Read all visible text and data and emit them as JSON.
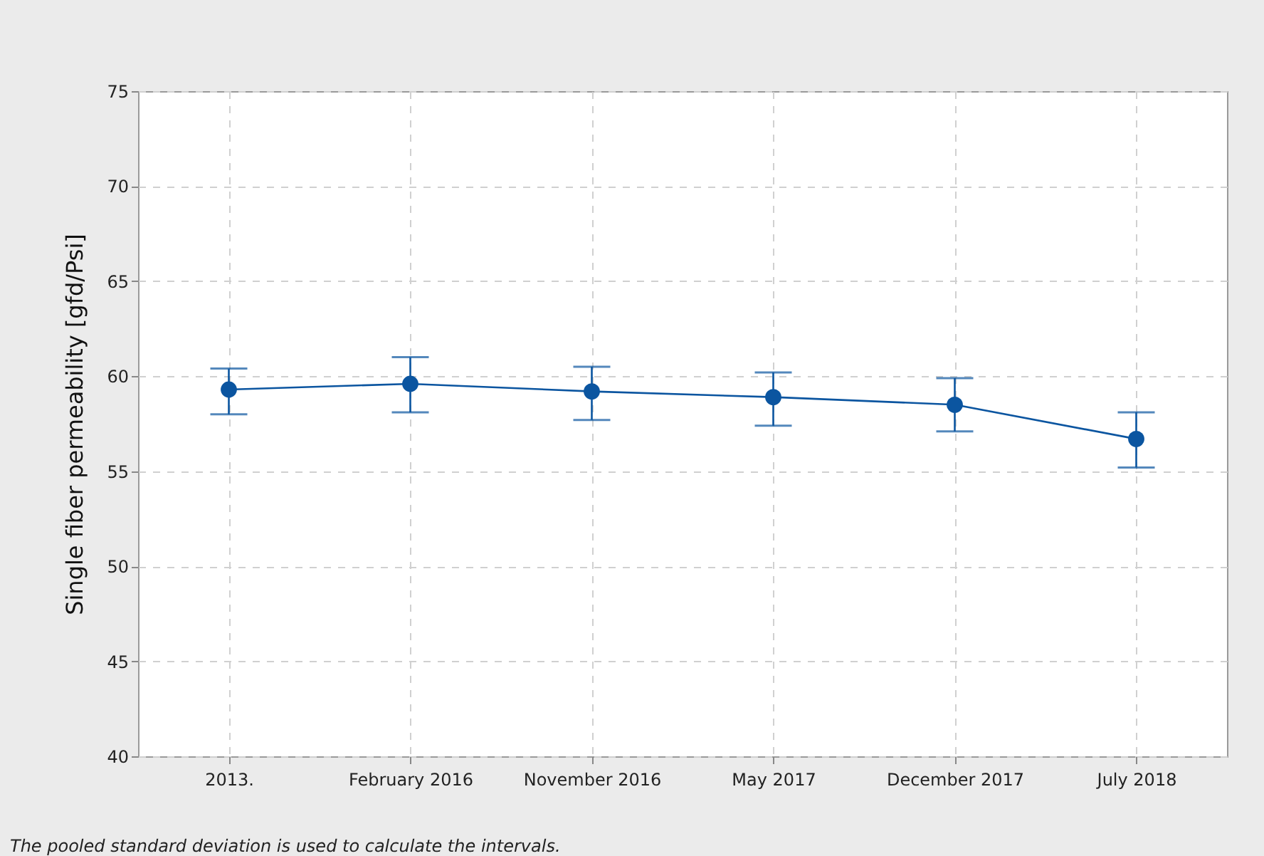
{
  "chart_data": {
    "type": "line",
    "ylabel": "Single fiber permeability [gfd/Psi]",
    "categories": [
      "2013.",
      "February 2016",
      "November 2016",
      "May 2017",
      "December 2017",
      "July 2018"
    ],
    "series": [
      {
        "color": "#0b55a0",
        "values": [
          59.3,
          59.6,
          59.2,
          58.9,
          58.5,
          56.7
        ],
        "errors": [
          [
            58.0,
            60.4
          ],
          [
            58.1,
            61.0
          ],
          [
            57.7,
            60.5
          ],
          [
            57.4,
            60.2
          ],
          [
            57.1,
            59.9
          ],
          [
            55.2,
            58.1
          ]
        ]
      }
    ],
    "ylim": [
      40,
      75
    ],
    "yticks": [
      40,
      45,
      50,
      55,
      60,
      65,
      70,
      75
    ],
    "grid": true,
    "marker": "circle",
    "line_style": "solid",
    "annotations": [
      "The pooled standard deviation is used to calculate the intervals."
    ]
  }
}
